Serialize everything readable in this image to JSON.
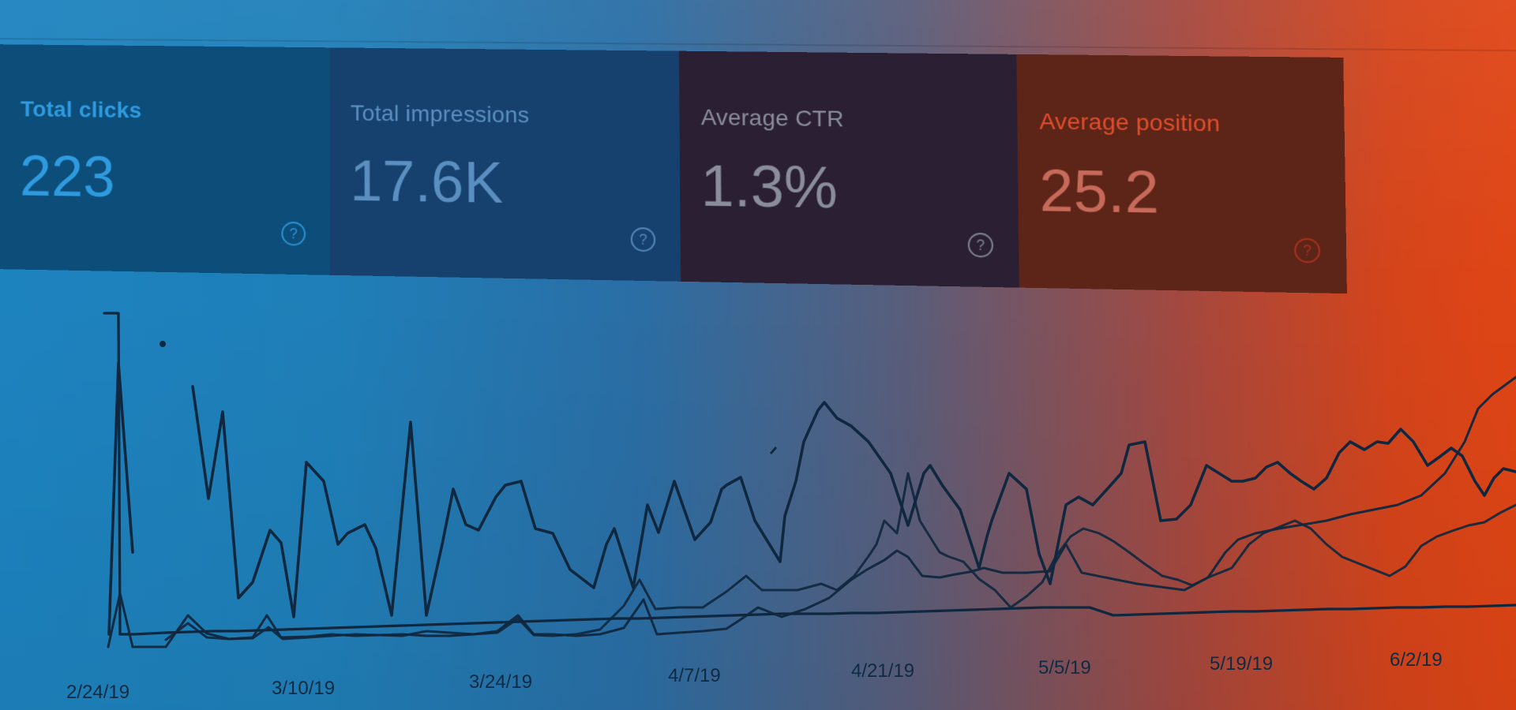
{
  "cards": [
    {
      "label": "Total clicks",
      "value": "223",
      "help": "?"
    },
    {
      "label": "Total impressions",
      "value": "17.6K",
      "help": "?"
    },
    {
      "label": "Average CTR",
      "value": "1.3%",
      "help": "?"
    },
    {
      "label": "Average position",
      "value": "25.2",
      "help": "?"
    }
  ],
  "axis": {
    "ticks": [
      "2/24/19",
      "3/10/19",
      "3/24/19",
      "4/7/19",
      "4/21/19",
      "5/5/19",
      "5/19/19",
      "6/2/19"
    ]
  },
  "colors": {
    "left_tint": "#1d83bf",
    "right_tint": "#df4515",
    "line": "#10283f"
  }
}
